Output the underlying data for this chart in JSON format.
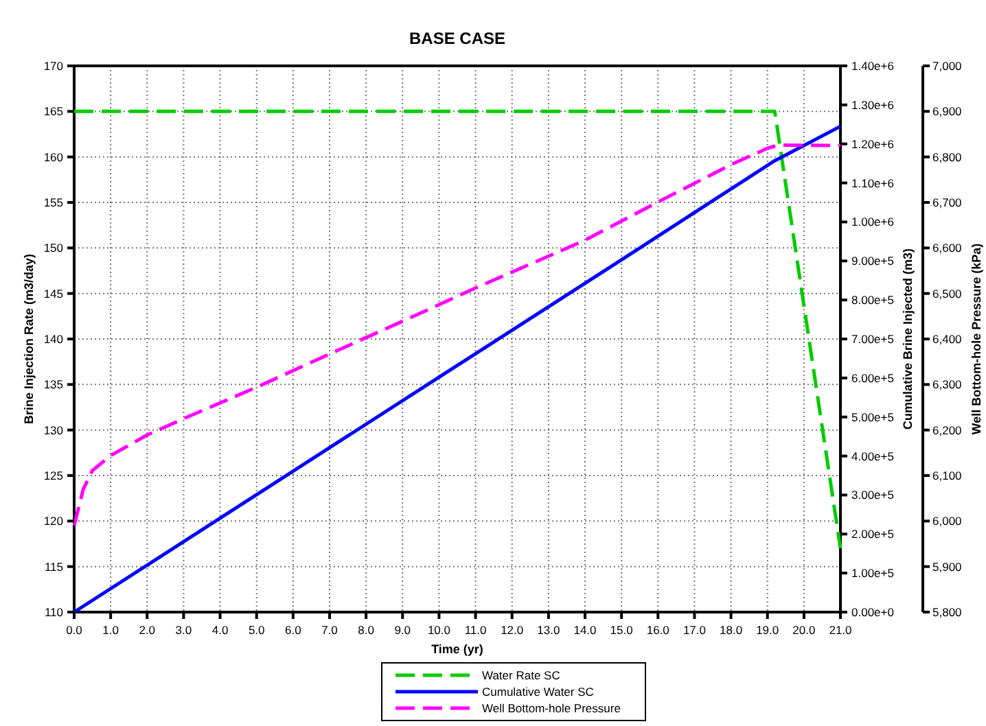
{
  "chart_data": {
    "type": "line",
    "title": "BASE CASE",
    "xlabel": "Time (yr)",
    "ylabel": "Brine Injection Rate (m3/day)",
    "y2label": "Cumulative Brine Injected (m3)",
    "y3label": "Well Bottom-hole Pressure (kPa)",
    "xlim": [
      0,
      21
    ],
    "xticks": [
      {
        "value": 0,
        "label": "0.0"
      },
      {
        "value": 1,
        "label": "1.0"
      },
      {
        "value": 2,
        "label": "2.0"
      },
      {
        "value": 3,
        "label": "3.0"
      },
      {
        "value": 4,
        "label": "4.0"
      },
      {
        "value": 5,
        "label": "5.0"
      },
      {
        "value": 6,
        "label": "6.0"
      },
      {
        "value": 7,
        "label": "7.0"
      },
      {
        "value": 8,
        "label": "8.0"
      },
      {
        "value": 9,
        "label": "9.0"
      },
      {
        "value": 10,
        "label": "10.0"
      },
      {
        "value": 11,
        "label": "11.0"
      },
      {
        "value": 12,
        "label": "12.0"
      },
      {
        "value": 13,
        "label": "13.0"
      },
      {
        "value": 14,
        "label": "14.0"
      },
      {
        "value": 15,
        "label": "15.0"
      },
      {
        "value": 16,
        "label": "16.0"
      },
      {
        "value": 17,
        "label": "17.0"
      },
      {
        "value": 18,
        "label": "18.0"
      },
      {
        "value": 19,
        "label": "19.0"
      },
      {
        "value": 20,
        "label": "20.0"
      },
      {
        "value": 21,
        "label": "21.0"
      }
    ],
    "ylim": [
      110,
      170
    ],
    "yticks": [
      110,
      115,
      120,
      125,
      130,
      135,
      140,
      145,
      150,
      155,
      160,
      165,
      170
    ],
    "y2lim": [
      0,
      1400000
    ],
    "y2ticks": [
      {
        "value": 0,
        "label": "0.00e+0"
      },
      {
        "value": 100000,
        "label": "1.00e+5"
      },
      {
        "value": 200000,
        "label": "2.00e+5"
      },
      {
        "value": 300000,
        "label": "3.00e+5"
      },
      {
        "value": 400000,
        "label": "4.00e+5"
      },
      {
        "value": 500000,
        "label": "5.00e+5"
      },
      {
        "value": 600000,
        "label": "6.00e+5"
      },
      {
        "value": 700000,
        "label": "7.00e+5"
      },
      {
        "value": 800000,
        "label": "8.00e+5"
      },
      {
        "value": 900000,
        "label": "9.00e+5"
      },
      {
        "value": 1000000,
        "label": "1.00e+6"
      },
      {
        "value": 1100000,
        "label": "1.10e+6"
      },
      {
        "value": 1200000,
        "label": "1.20e+6"
      },
      {
        "value": 1300000,
        "label": "1.30e+6"
      },
      {
        "value": 1400000,
        "label": "1.40e+6"
      }
    ],
    "y3lim": [
      5800,
      7000
    ],
    "y3ticks": [
      {
        "value": 5800,
        "label": "5,800"
      },
      {
        "value": 5900,
        "label": "5,900"
      },
      {
        "value": 6000,
        "label": "6,000"
      },
      {
        "value": 6100,
        "label": "6,100"
      },
      {
        "value": 6200,
        "label": "6,200"
      },
      {
        "value": 6300,
        "label": "6,300"
      },
      {
        "value": 6400,
        "label": "6,400"
      },
      {
        "value": 6500,
        "label": "6,500"
      },
      {
        "value": 6600,
        "label": "6,600"
      },
      {
        "value": 6700,
        "label": "6,700"
      },
      {
        "value": 6800,
        "label": "6,800"
      },
      {
        "value": 6900,
        "label": "6,900"
      },
      {
        "value": 7000,
        "label": "7,000"
      }
    ],
    "grid": true,
    "legend": "bottom",
    "series": [
      {
        "name": "Water Rate SC",
        "color": "#00cc00",
        "line_style": "dashed",
        "x": [
          0,
          19.2,
          21
        ],
        "values": [
          165,
          165,
          117
        ]
      },
      {
        "name": "Cumulative Water SC",
        "color": "#0000ff",
        "line_style": "solid",
        "axis": "y2",
        "x": [
          0,
          5,
          10,
          15,
          19.2,
          21
        ],
        "values": [
          0,
          301000,
          602000,
          903000,
          1157000,
          1245000
        ]
      },
      {
        "name": "Well Bottom-hole Pressure",
        "color": "#ff00ff",
        "line_style": "dashed",
        "axis": "y3",
        "x": [
          0,
          0.25,
          0.5,
          1,
          2,
          3,
          5,
          7,
          9,
          11,
          14,
          16,
          18,
          19,
          19.3,
          21
        ],
        "values": [
          5990,
          6070,
          6111,
          6144,
          6189,
          6225,
          6294,
          6367,
          6439,
          6512,
          6617,
          6701,
          6783,
          6819,
          6826,
          6825
        ]
      }
    ]
  }
}
